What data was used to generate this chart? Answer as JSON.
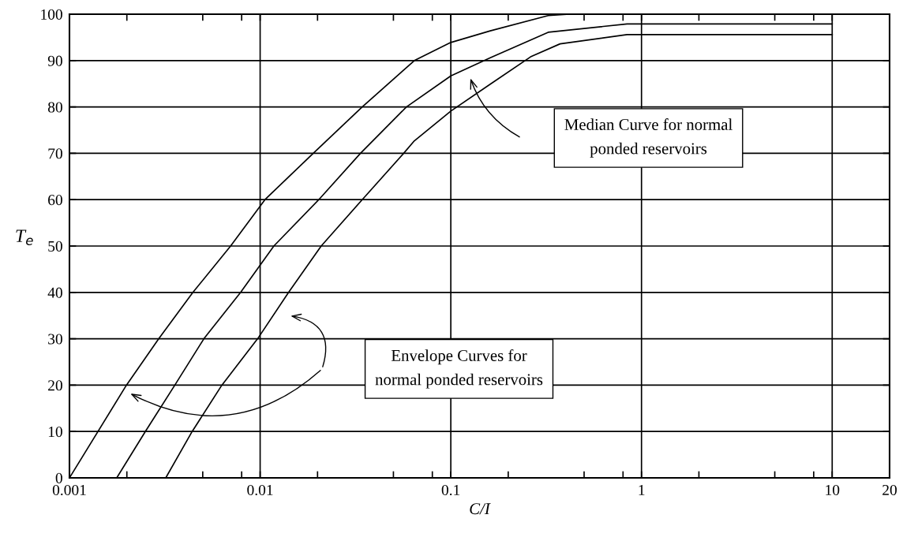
{
  "chart_data": {
    "type": "line",
    "xlabel": "C/I",
    "ylabel": "T$_{e}$",
    "log": "x",
    "grid": true,
    "marker": "none",
    "line_style": "solid",
    "xlim": [
      0.001,
      20
    ],
    "ylim": [
      0,
      100
    ],
    "xticks": [
      {
        "value": 0.001,
        "label": "0.001"
      },
      {
        "value": 0.002,
        "label": null
      },
      {
        "value": 0.005,
        "label": null
      },
      {
        "value": 0.008,
        "label": null
      },
      {
        "value": 0.01,
        "label": "0.01"
      },
      {
        "value": 0.02,
        "label": null
      },
      {
        "value": 0.05,
        "label": null
      },
      {
        "value": 0.08,
        "label": null
      },
      {
        "value": 0.1,
        "label": "0.1"
      },
      {
        "value": 0.2,
        "label": null
      },
      {
        "value": 0.5,
        "label": null
      },
      {
        "value": 0.8,
        "label": null
      },
      1,
      {
        "value": 2,
        "label": null
      },
      {
        "value": 5,
        "label": null
      },
      {
        "value": 8,
        "label": null
      },
      10,
      20
    ],
    "yticks": [
      0,
      10,
      20,
      30,
      40,
      50,
      60,
      70,
      80,
      90,
      100
    ],
    "series": [
      {
        "color": "#000000",
        "x": [
          0.001,
          0.00199,
          0.00294,
          0.00444,
          0.007,
          0.0106,
          0.019,
          0.0343,
          0.0644,
          0.1,
          0.161,
          0.324,
          0.42,
          10
        ],
        "values": [
          0,
          20,
          30,
          40,
          50,
          60,
          70,
          80,
          90,
          93.9,
          96.4,
          99.7,
          100,
          100
        ]
      },
      {
        "color": "#000000",
        "x": [
          0.00177,
          0.0025,
          0.00357,
          0.00507,
          0.0079,
          0.0118,
          0.0203,
          0.0336,
          0.0585,
          0.1,
          0.161,
          0.324,
          0.84,
          10
        ],
        "values": [
          0,
          10,
          20,
          30,
          40,
          50,
          60,
          70,
          80,
          86.7,
          90.6,
          96.1,
          97.9,
          97.9
        ]
      },
      {
        "color": "#000000",
        "x": [
          0.0032,
          0.0044,
          0.0063,
          0.0097,
          0.0141,
          0.0209,
          0.0343,
          0.0566,
          0.0644,
          0.1,
          0.161,
          0.262,
          0.374,
          0.84,
          10
        ],
        "values": [
          0,
          10,
          20,
          30,
          40,
          50,
          60,
          70,
          72.7,
          79.1,
          84.9,
          90.8,
          93.6,
          95.6,
          95.6
        ]
      }
    ],
    "annotations": [
      "Median Curve for normal\nponded reservoirs",
      "Envelope Curves for\nnormal ponded reservoirs"
    ]
  }
}
